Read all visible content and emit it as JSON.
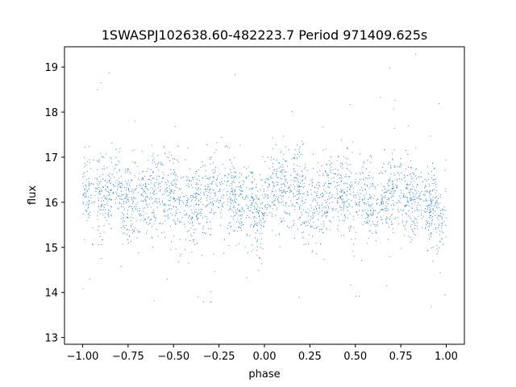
{
  "chart_data": {
    "type": "scatter",
    "title": "1SWASPJ102638.60-482223.7 Period 971409.625s",
    "xlabel": "phase",
    "ylabel": "flux",
    "xlim": [
      -1.1,
      1.1
    ],
    "ylim": [
      12.85,
      19.45
    ],
    "xticks": [
      -1.0,
      -0.75,
      -0.5,
      -0.25,
      0.0,
      0.25,
      0.5,
      0.75,
      1.0
    ],
    "xtick_labels": [
      "−1.00",
      "−0.75",
      "−0.50",
      "−0.25",
      "0.00",
      "0.25",
      "0.50",
      "0.75",
      "1.00"
    ],
    "yticks": [
      13,
      14,
      15,
      16,
      17,
      18,
      19
    ],
    "ytick_labels": [
      "13",
      "14",
      "15",
      "16",
      "17",
      "18",
      "19"
    ],
    "point_color": "#1f77b4",
    "grid": false,
    "legend": "none",
    "series": [
      {
        "x_range": [
          -1.0,
          1.0
        ],
        "mean_flux": 16.1,
        "typical_spread": 0.45,
        "bright_features": [
          {
            "phase": -0.82,
            "flux": 17.6
          },
          {
            "phase": 0.18,
            "flux": 17.6
          }
        ],
        "faint_features": [
          {
            "phase": -0.03,
            "flux": 14.8
          },
          {
            "phase": 0.97,
            "flux": 14.8
          }
        ]
      }
    ]
  }
}
